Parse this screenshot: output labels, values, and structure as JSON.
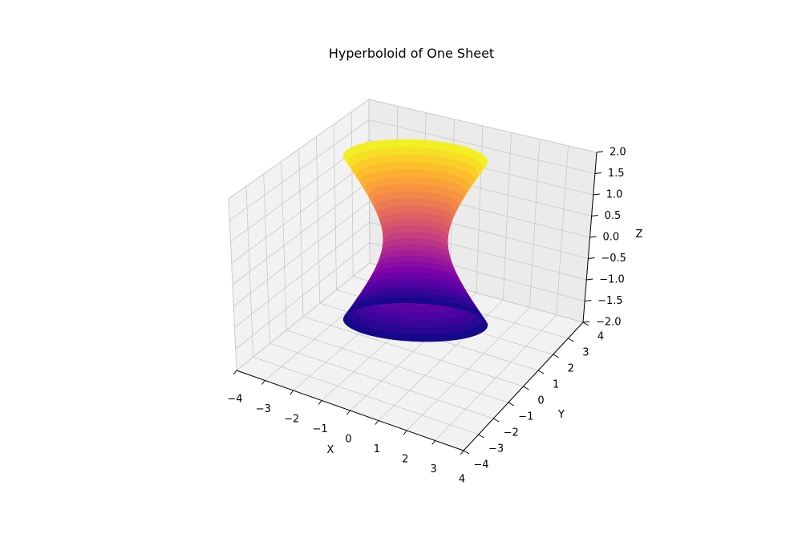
{
  "chart_data": {
    "type": "surface3d",
    "title": "Hyperboloid of One Sheet",
    "surface": "x^2 + y^2 - z^2 = 1",
    "colormap": "plasma",
    "grid": true,
    "xlabel": "X",
    "ylabel": "Y",
    "zlabel": "Z",
    "xlim": [
      -4,
      4
    ],
    "ylim": [
      -4,
      4
    ],
    "zlim": [
      -2,
      2
    ],
    "x_ticks": [
      "−4",
      "−3",
      "−2",
      "−1",
      "0",
      "1",
      "2",
      "3",
      "4"
    ],
    "y_ticks": [
      "−4",
      "−3",
      "−2",
      "−1",
      "0",
      "1",
      "2",
      "3",
      "4"
    ],
    "z_ticks": [
      "−2.0",
      "−1.5",
      "−1.0",
      "−0.5",
      "0.0",
      "0.5",
      "1.0",
      "1.5",
      "2.0"
    ],
    "u_range": [
      -2,
      2
    ],
    "theta_range": [
      0,
      360
    ]
  }
}
